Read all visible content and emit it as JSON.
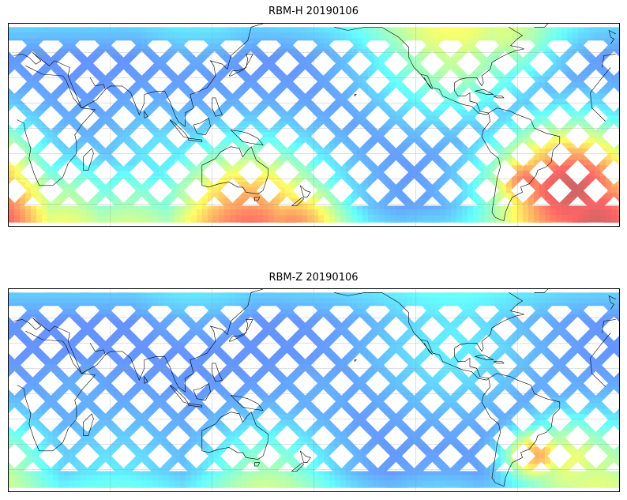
{
  "panels": [
    {
      "id": "rbm-h",
      "title": "RBM-H 20190106",
      "hotspots": [
        {
          "lon": -30,
          "lat": -35,
          "level": 0.95,
          "spread": 28
        },
        {
          "lon": -15,
          "lat": -48,
          "level": 0.9,
          "spread": 26
        },
        {
          "lon": -55,
          "lat": -30,
          "level": 0.85,
          "spread": 14
        },
        {
          "lon": 140,
          "lat": -50,
          "level": 0.8,
          "spread": 30
        },
        {
          "lon": 165,
          "lat": -52,
          "level": 0.75,
          "spread": 20
        },
        {
          "lon": 30,
          "lat": -50,
          "level": 0.55,
          "spread": 25
        },
        {
          "lon": 70,
          "lat": -52,
          "level": 0.5,
          "spread": 25
        },
        {
          "lon": -100,
          "lat": 50,
          "level": 0.55,
          "spread": 30
        },
        {
          "lon": -70,
          "lat": 52,
          "level": 0.5,
          "spread": 20
        },
        {
          "lon": 90,
          "lat": -20,
          "level": 0.35,
          "spread": 25
        }
      ]
    },
    {
      "id": "rbm-z",
      "title": "RBM-Z 20190106",
      "hotspots": [
        {
          "lon": -50,
          "lat": -35,
          "level": 0.75,
          "spread": 12
        },
        {
          "lon": -30,
          "lat": -38,
          "level": 0.6,
          "spread": 20
        },
        {
          "lon": -15,
          "lat": -45,
          "level": 0.55,
          "spread": 25
        },
        {
          "lon": 150,
          "lat": -50,
          "level": 0.5,
          "spread": 25
        },
        {
          "lon": -100,
          "lat": 30,
          "level": 0.35,
          "spread": 30
        },
        {
          "lon": 60,
          "lat": -52,
          "level": 0.35,
          "spread": 30
        }
      ]
    }
  ],
  "map": {
    "projection": "PlateCarree",
    "central_longitude": 180,
    "lat_range": [
      -60,
      60
    ],
    "lon_range": [
      -180,
      180
    ],
    "gridlines": true,
    "colormap": "jet",
    "data_alpha": 0.6
  }
}
